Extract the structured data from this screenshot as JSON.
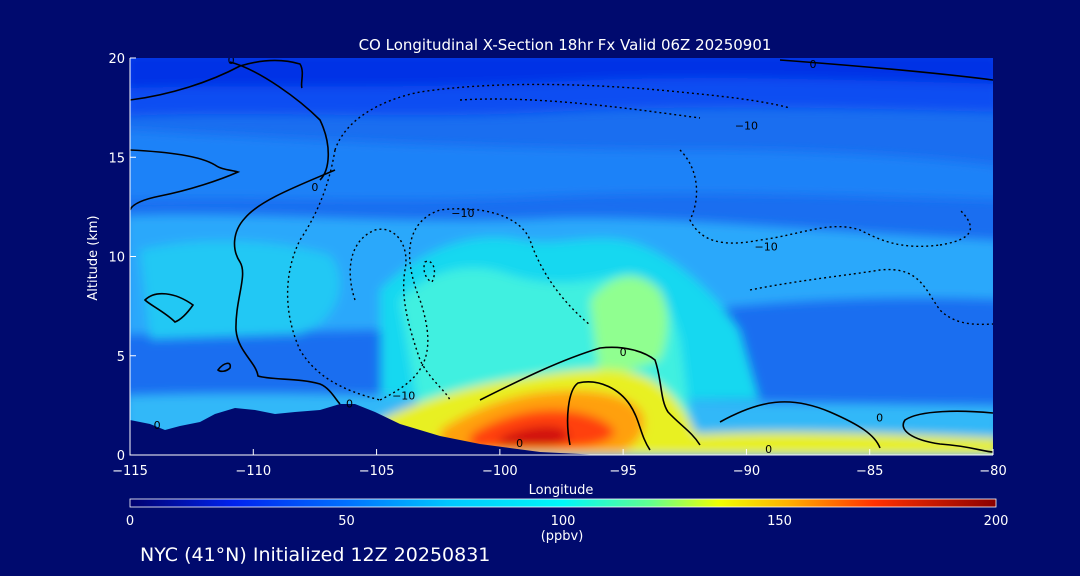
{
  "chart_data": {
    "type": "heatmap",
    "title": "CO Longitudinal X-Section 18hr  Fx Valid 06Z 20250901",
    "xlabel": "Longitude",
    "ylabel": "Altitude (km)",
    "xlim": [
      -115,
      -80
    ],
    "ylim": [
      0,
      20
    ],
    "x_ticks": [
      -115,
      -110,
      -105,
      -100,
      -95,
      -90,
      -85,
      -80
    ],
    "x_tick_labels": [
      "−115",
      "−110",
      "−105",
      "−100",
      "−95",
      "−90",
      "−85",
      "−80"
    ],
    "y_ticks": [
      0,
      5,
      10,
      15,
      20
    ],
    "y_tick_labels": [
      "0",
      "5",
      "10",
      "15",
      "20"
    ],
    "colorbar": {
      "min": 0,
      "max": 200,
      "ticks": [
        0,
        50,
        100,
        150,
        200
      ],
      "tick_labels": [
        "0",
        "50",
        "100",
        "150",
        "200"
      ],
      "units": "(ppbv)"
    },
    "contour_labels": [
      {
        "text": "0",
        "lon": -110.9,
        "alt": 19.9
      },
      {
        "text": "0",
        "lon": -87.3,
        "alt": 19.7
      },
      {
        "text": "−10",
        "lon": -90.0,
        "alt": 16.6
      },
      {
        "text": "0",
        "lon": -107.5,
        "alt": 13.5
      },
      {
        "text": "−10",
        "lon": -101.5,
        "alt": 12.2
      },
      {
        "text": "−10",
        "lon": -89.2,
        "alt": 10.5
      },
      {
        "text": "0",
        "lon": -95.0,
        "alt": 5.2
      },
      {
        "text": "−10",
        "lon": -103.9,
        "alt": 3.0
      },
      {
        "text": "0",
        "lon": -106.1,
        "alt": 2.6
      },
      {
        "text": "0",
        "lon": -113.9,
        "alt": 1.5
      },
      {
        "text": "0",
        "lon": -84.6,
        "alt": 1.9
      },
      {
        "text": "0",
        "lon": -99.2,
        "alt": 0.6
      },
      {
        "text": "0",
        "lon": -89.1,
        "alt": 0.3
      }
    ],
    "footer": "NYC (41°N) Initialized 12Z 20250831"
  }
}
